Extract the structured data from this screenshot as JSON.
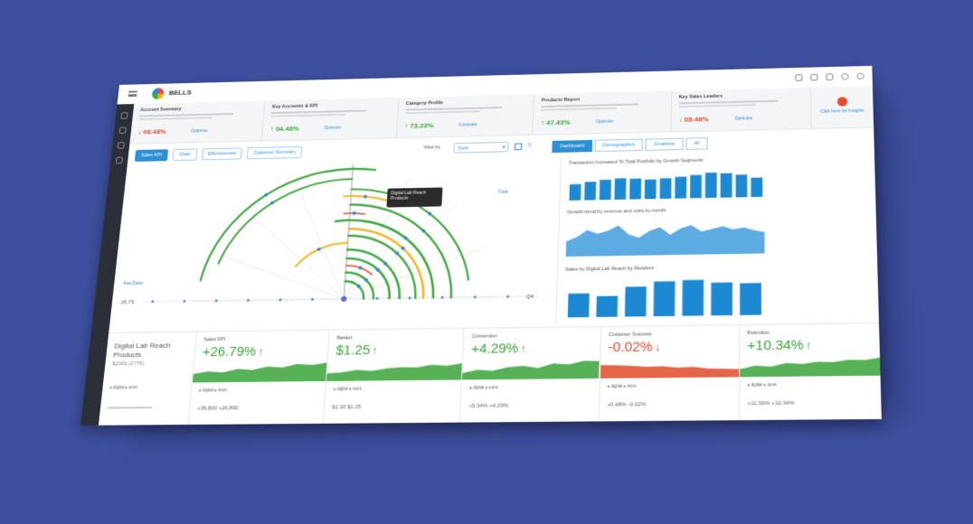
{
  "colors": {
    "background": "#3d4f9e",
    "accent": "#2d8fd5",
    "positive": "#3aa53a",
    "negative": "#e04a2c",
    "sidebar": "#2b3038",
    "arc_green": "#43a843",
    "arc_yellow": "#f2b41e",
    "arc_red": "#e04a2c"
  },
  "header": {
    "app_name": "BELLS"
  },
  "kpis": [
    {
      "title": "Account Summary",
      "value": "↓ 08.48%",
      "link": "Optimize",
      "trend": "down"
    },
    {
      "title": "Key Accounts & KPI",
      "value": "↑ 04.48%",
      "link": "Optimize",
      "trend": "up"
    },
    {
      "title": "Category Profile",
      "value": "↑ 73.23%",
      "link": "Compare",
      "trend": "up"
    },
    {
      "title": "Products Report",
      "value": "↑ 47.43%",
      "link": "Optimize",
      "trend": "up"
    },
    {
      "title": "Key Sales Leaders",
      "value": "↓ 08.48%",
      "link": "Optimize",
      "trend": "down"
    }
  ],
  "alert": {
    "label": "Click here for Insights"
  },
  "filters": [
    "Sales KPI",
    "Chart",
    "Effectiveness",
    "Customer Summary"
  ],
  "viewby": {
    "label": "View by",
    "value": "Tech"
  },
  "tabs": [
    "Dashboard",
    "Demographics",
    "Creatives",
    "All"
  ],
  "radial": {
    "tooltip": "Digital Lab Reach Products",
    "left_label": "Ava Data",
    "right_label": "Total",
    "axis_left": "25.75",
    "axis_right": "Q4"
  },
  "right_charts": {
    "chart1_title": "Transaction Increased To Total Portfolio by Growth Segments",
    "chart1_values": [
      55,
      62,
      68,
      72,
      70,
      66,
      69,
      73,
      78,
      85,
      82,
      76,
      65
    ],
    "chart2_title": "Growth trend by revenue and units by month",
    "chart2_values": [
      30,
      38,
      52,
      44,
      50,
      60,
      42,
      35,
      48,
      55,
      40,
      52,
      58,
      45,
      50,
      55,
      48,
      52,
      46,
      42
    ],
    "chart3_title": "Sales by Digital Lab Reach by Retailers",
    "chart3_values": [
      48,
      42,
      60,
      70,
      72,
      66,
      64
    ]
  },
  "bottom": {
    "label": "Digital Lab Reach Products",
    "label_sub": "$2009 (2775)",
    "legend": "● digital  ● store",
    "metrics": [
      {
        "title": "Sales KPI",
        "value": "+26.79%",
        "arrow": "↑",
        "foot": "+38,800  +26,800",
        "trend": "up",
        "spark": [
          0.4,
          0.5,
          0.45,
          0.6,
          0.55,
          0.7,
          0.65,
          0.8,
          0.75,
          0.85
        ]
      },
      {
        "title": "Basket",
        "value": "$1.25",
        "arrow": "↑",
        "foot": "$1.30   $1.25",
        "trend": "up",
        "spark": [
          0.35,
          0.4,
          0.5,
          0.45,
          0.55,
          0.6,
          0.58,
          0.7,
          0.65,
          0.75
        ]
      },
      {
        "title": "Conversion",
        "value": "+4.29%",
        "arrow": "↑",
        "foot": "+5.34%   +4.29%",
        "trend": "up",
        "spark": [
          0.3,
          0.45,
          0.4,
          0.55,
          0.6,
          0.5,
          0.7,
          0.65,
          0.8,
          0.78
        ]
      },
      {
        "title": "Customer Success",
        "value": "-0.02%",
        "arrow": "↓",
        "foot": "+0.48%   -0.02%",
        "trend": "down",
        "spark": [
          0.6,
          0.58,
          0.55,
          0.5,
          0.52,
          0.45,
          0.48,
          0.4,
          0.38,
          0.35
        ]
      },
      {
        "title": "Retention",
        "value": "+10.34%",
        "arrow": "↑",
        "foot": "+11.56%   +10.34%",
        "trend": "up",
        "spark": [
          0.35,
          0.5,
          0.45,
          0.6,
          0.55,
          0.65,
          0.62,
          0.72,
          0.7,
          0.8
        ]
      }
    ]
  }
}
